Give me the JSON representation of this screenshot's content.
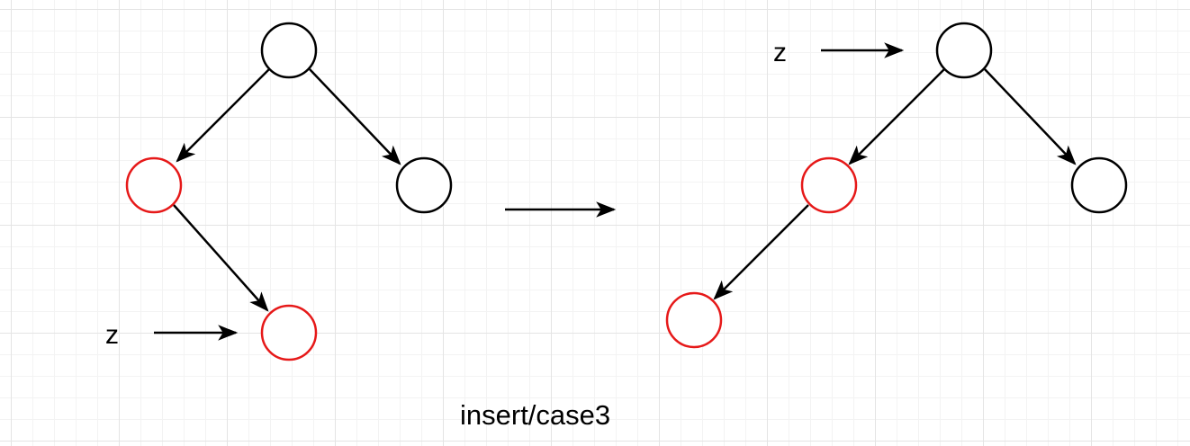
{
  "diagram": {
    "caption": "insert/case3",
    "before": {
      "z_label": "z",
      "nodes": [
        {
          "id": "b-root",
          "color": "black"
        },
        {
          "id": "b-left",
          "color": "red"
        },
        {
          "id": "b-right",
          "color": "black"
        },
        {
          "id": "b-z",
          "color": "red"
        }
      ]
    },
    "after": {
      "z_label": "z",
      "nodes": [
        {
          "id": "a-root",
          "color": "black"
        },
        {
          "id": "a-left",
          "color": "red"
        },
        {
          "id": "a-right",
          "color": "black"
        },
        {
          "id": "a-leftleft",
          "color": "red"
        }
      ]
    },
    "colors": {
      "black_node": "#000000",
      "red_node": "#e61919",
      "edge": "#000000"
    }
  }
}
